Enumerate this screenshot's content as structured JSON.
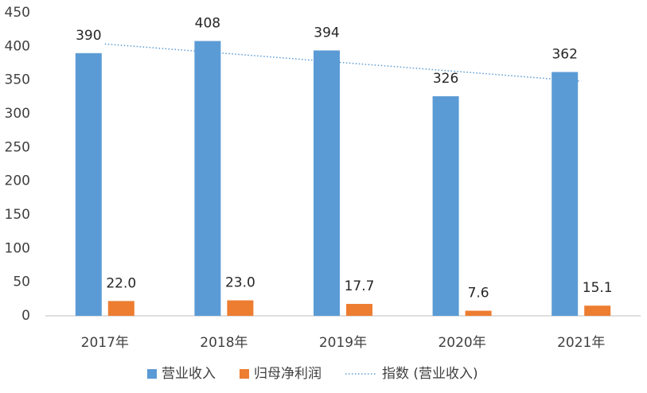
{
  "chart_data": {
    "type": "bar",
    "categories": [
      "2017年",
      "2018年",
      "2019年",
      "2020年",
      "2021年"
    ],
    "series": [
      {
        "name": "营业收入",
        "color": "#5b9bd5",
        "values": [
          390,
          408,
          394,
          326,
          362
        ]
      },
      {
        "name": "归母净利润",
        "color": "#ed7d31",
        "values": [
          22,
          23,
          17.7,
          7.6,
          15.1
        ],
        "value_labels": [
          "22.0",
          "23.0",
          "17.7",
          "7.6",
          "15.1"
        ]
      }
    ],
    "trendline": {
      "name": "指数 (营业收入)",
      "color": "#5b9bd5",
      "values": [
        403.6,
        389.8,
        376,
        362.2,
        348.4
      ]
    },
    "ylim": [
      0,
      450
    ],
    "yticks": [
      0,
      50,
      100,
      150,
      200,
      250,
      300,
      350,
      400,
      450
    ],
    "grid": false
  }
}
